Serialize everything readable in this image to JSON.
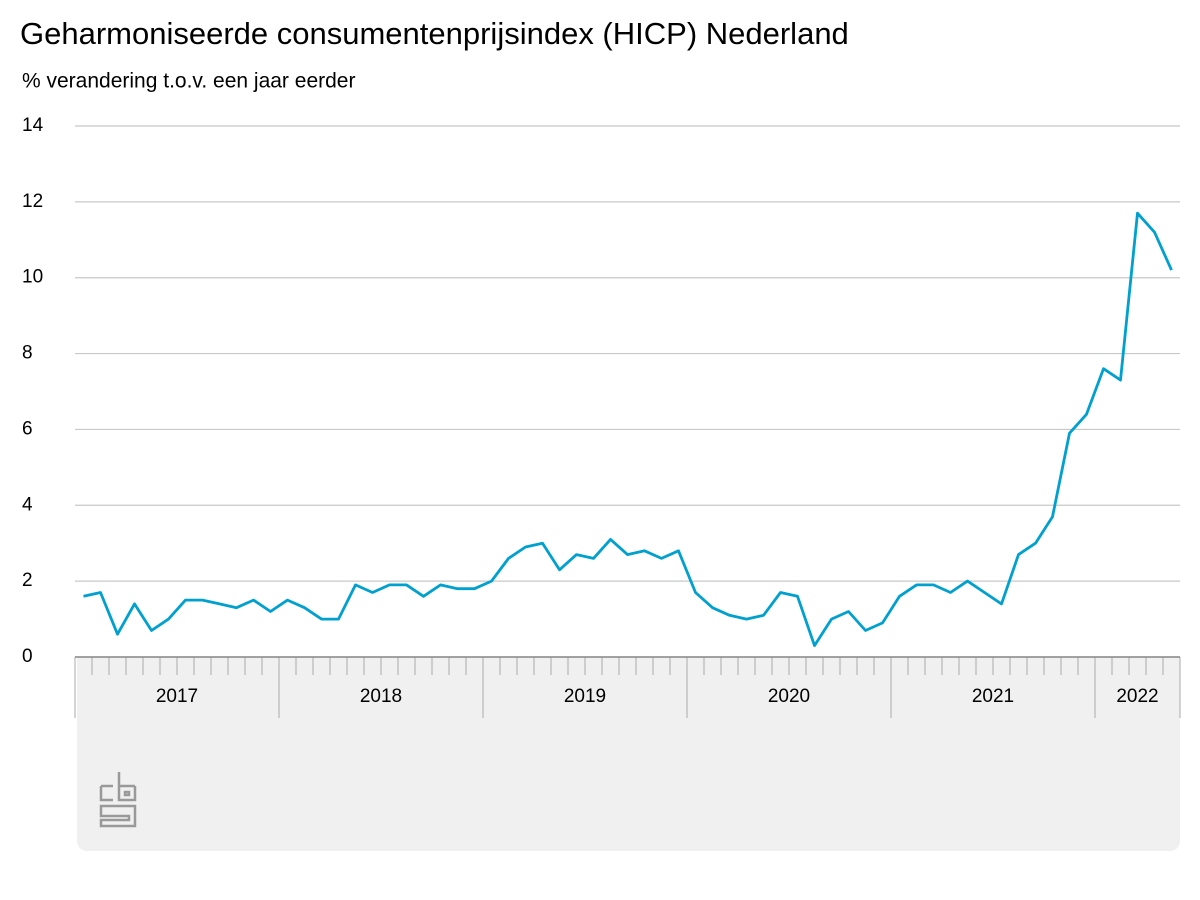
{
  "chart_data": {
    "type": "line",
    "title": "Geharmoniseerde consumentenprijsindex (HICP) Nederland",
    "subtitle": "% verandering t.o.v. een jaar eerder",
    "categories": [
      "2017",
      null,
      null,
      null,
      null,
      null,
      null,
      null,
      null,
      null,
      null,
      null,
      "2018",
      null,
      null,
      null,
      null,
      null,
      null,
      null,
      null,
      null,
      null,
      null,
      "2019",
      null,
      null,
      null,
      null,
      null,
      null,
      null,
      null,
      null,
      null,
      null,
      "2020",
      null,
      null,
      null,
      null,
      null,
      null,
      null,
      null,
      null,
      null,
      null,
      "2021",
      null,
      null,
      null,
      null,
      null,
      null,
      null,
      null,
      null,
      null,
      null,
      "2022",
      null,
      null,
      null,
      null
    ],
    "series": [
      {
        "name": "HICP",
        "color": "#00a0cf",
        "values": [
          1.6,
          1.7,
          0.6,
          1.4,
          0.7,
          1.0,
          1.5,
          1.5,
          1.4,
          1.3,
          1.5,
          1.2,
          1.5,
          1.3,
          1.0,
          1.0,
          1.9,
          1.7,
          1.9,
          1.9,
          1.6,
          1.9,
          1.8,
          1.8,
          2.0,
          2.6,
          2.9,
          3.0,
          2.3,
          2.7,
          2.6,
          3.1,
          2.7,
          2.8,
          2.6,
          2.8,
          1.7,
          1.3,
          1.1,
          1.0,
          1.1,
          1.7,
          1.6,
          0.3,
          1.0,
          1.2,
          0.7,
          0.9,
          1.6,
          1.9,
          1.9,
          1.7,
          2.0,
          1.7,
          1.4,
          2.7,
          3.0,
          3.7,
          5.9,
          6.4,
          7.6,
          7.3,
          11.7,
          11.2,
          10.2
        ]
      }
    ],
    "ylim": [
      0,
      14
    ],
    "yticks": [
      0,
      2,
      4,
      6,
      8,
      10,
      12,
      14
    ],
    "grid": true
  }
}
